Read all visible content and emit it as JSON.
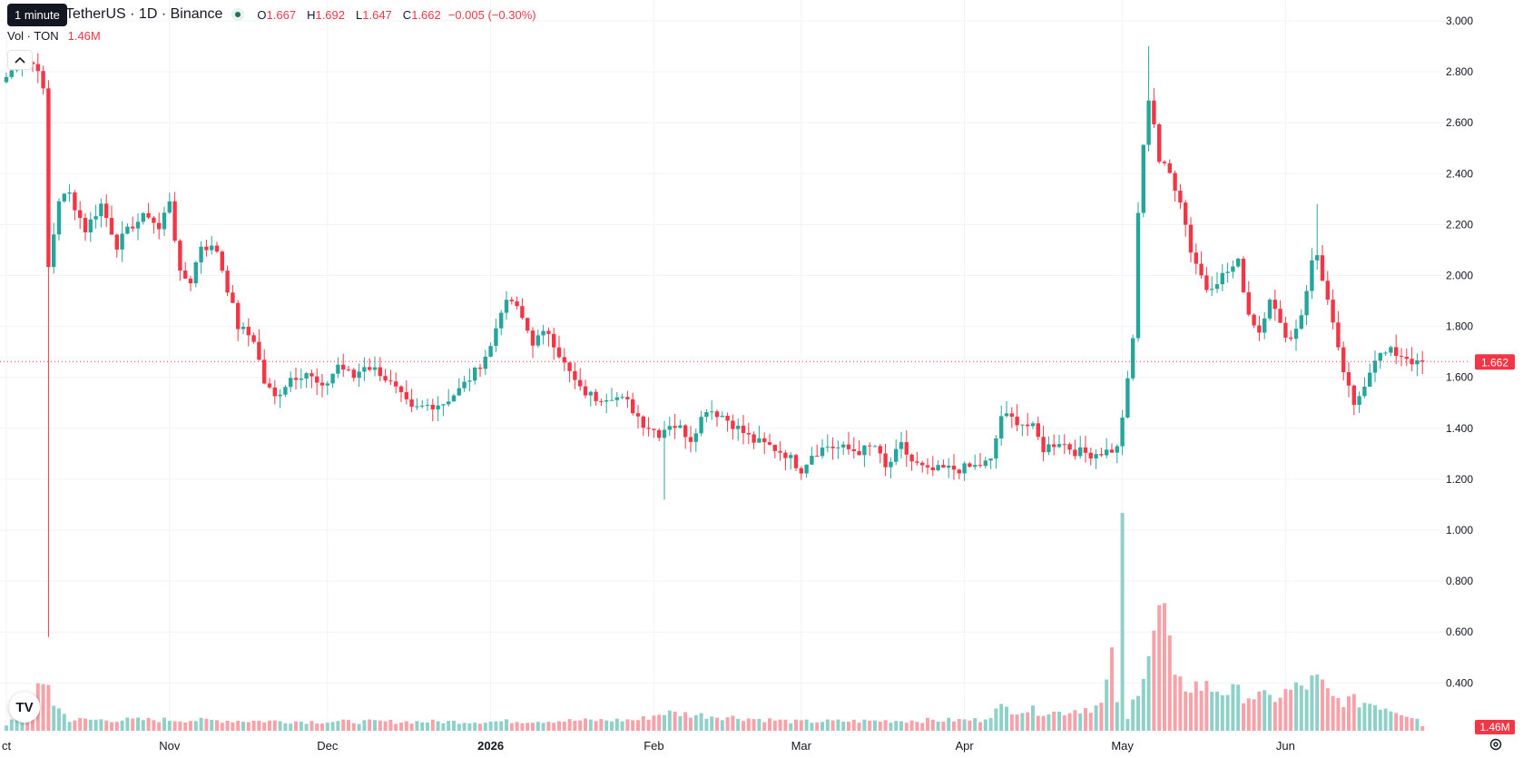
{
  "tooltip": "1 minute",
  "legend": {
    "symbol": "TetherUS · 1D · Binance",
    "o_label": "O",
    "o_value": "1.667",
    "h_label": "H",
    "h_value": "1.692",
    "l_label": "L",
    "l_value": "1.647",
    "c_label": "C",
    "c_value": "1.662",
    "change": "−0.005 (−0.30%)",
    "vol_label": "Vol · TON",
    "vol_value": "1.46M"
  },
  "collapse_icon": "chevron-up-icon",
  "settings_icon": "gear-icon",
  "logo": "TV",
  "colors": {
    "up": "#26a69a",
    "down": "#f23645",
    "vol_up": "#8fd0c8",
    "vol_down": "#f7a1a8",
    "grid": "#f0f3fa",
    "price_line": "#f23645"
  },
  "chart_data": {
    "type": "candlestick",
    "ylim": [
      0.34,
      3.1
    ],
    "y_ticks": [
      "3.000",
      "2.800",
      "2.600",
      "2.400",
      "2.200",
      "2.000",
      "1.800",
      "1.600",
      "1.400",
      "1.200",
      "1.000",
      "0.800",
      "0.600",
      "0.400"
    ],
    "x_ticks": [
      {
        "label": "ct",
        "index": 0
      },
      {
        "label": "Nov",
        "index": 31
      },
      {
        "label": "Dec",
        "index": 61
      },
      {
        "label": "2026",
        "index": 92,
        "bold": true
      },
      {
        "label": "Feb",
        "index": 123
      },
      {
        "label": "Mar",
        "index": 151
      },
      {
        "label": "Apr",
        "index": 182
      },
      {
        "label": "May",
        "index": 212
      },
      {
        "label": "Jun",
        "index": 243
      }
    ],
    "last_price": "1.662",
    "last_volume": "1.46M",
    "keypoints": [
      [
        0,
        2.78
      ],
      [
        3,
        2.85
      ],
      [
        6,
        2.82
      ],
      [
        7,
        2.72
      ],
      [
        8,
        2.03
      ],
      [
        10,
        2.3
      ],
      [
        12,
        2.32
      ],
      [
        15,
        2.18
      ],
      [
        18,
        2.28
      ],
      [
        21,
        2.12
      ],
      [
        24,
        2.2
      ],
      [
        27,
        2.24
      ],
      [
        29,
        2.18
      ],
      [
        31,
        2.3
      ],
      [
        33,
        2.0
      ],
      [
        35,
        1.98
      ],
      [
        37,
        2.12
      ],
      [
        40,
        2.1
      ],
      [
        42,
        1.95
      ],
      [
        44,
        1.8
      ],
      [
        47,
        1.75
      ],
      [
        49,
        1.58
      ],
      [
        51,
        1.52
      ],
      [
        54,
        1.6
      ],
      [
        57,
        1.62
      ],
      [
        60,
        1.55
      ],
      [
        63,
        1.65
      ],
      [
        66,
        1.6
      ],
      [
        68,
        1.65
      ],
      [
        71,
        1.62
      ],
      [
        74,
        1.55
      ],
      [
        77,
        1.47
      ],
      [
        80,
        1.49
      ],
      [
        83,
        1.5
      ],
      [
        86,
        1.55
      ],
      [
        89,
        1.62
      ],
      [
        92,
        1.72
      ],
      [
        94,
        1.87
      ],
      [
        96,
        1.9
      ],
      [
        98,
        1.83
      ],
      [
        100,
        1.74
      ],
      [
        103,
        1.78
      ],
      [
        106,
        1.65
      ],
      [
        109,
        1.55
      ],
      [
        112,
        1.52
      ],
      [
        115,
        1.53
      ],
      [
        118,
        1.5
      ],
      [
        121,
        1.42
      ],
      [
        124,
        1.38
      ],
      [
        126,
        1.42
      ],
      [
        128,
        1.4
      ],
      [
        130,
        1.36
      ],
      [
        133,
        1.48
      ],
      [
        136,
        1.45
      ],
      [
        139,
        1.4
      ],
      [
        142,
        1.35
      ],
      [
        145,
        1.33
      ],
      [
        148,
        1.3
      ],
      [
        151,
        1.24
      ],
      [
        153,
        1.3
      ],
      [
        156,
        1.33
      ],
      [
        159,
        1.32
      ],
      [
        162,
        1.31
      ],
      [
        165,
        1.33
      ],
      [
        167,
        1.24
      ],
      [
        170,
        1.33
      ],
      [
        172,
        1.27
      ],
      [
        175,
        1.23
      ],
      [
        178,
        1.24
      ],
      [
        181,
        1.24
      ],
      [
        184,
        1.25
      ],
      [
        187,
        1.27
      ],
      [
        189,
        1.45
      ],
      [
        192,
        1.43
      ],
      [
        195,
        1.4
      ],
      [
        197,
        1.32
      ],
      [
        200,
        1.35
      ],
      [
        203,
        1.31
      ],
      [
        206,
        1.3
      ],
      [
        209,
        1.31
      ],
      [
        211,
        1.32
      ],
      [
        213,
        1.58
      ],
      [
        214,
        1.75
      ],
      [
        215,
        2.25
      ],
      [
        216,
        2.5
      ],
      [
        217,
        2.7
      ],
      [
        218,
        2.6
      ],
      [
        219,
        2.45
      ],
      [
        221,
        2.4
      ],
      [
        223,
        2.3
      ],
      [
        225,
        2.1
      ],
      [
        228,
        1.95
      ],
      [
        231,
        2.0
      ],
      [
        234,
        2.05
      ],
      [
        236,
        1.85
      ],
      [
        238,
        1.78
      ],
      [
        240,
        1.92
      ],
      [
        242,
        1.8
      ],
      [
        244,
        1.75
      ],
      [
        246,
        1.85
      ],
      [
        248,
        2.05
      ],
      [
        249,
        2.08
      ],
      [
        251,
        1.9
      ],
      [
        253,
        1.7
      ],
      [
        255,
        1.55
      ],
      [
        256,
        1.48
      ],
      [
        258,
        1.58
      ],
      [
        260,
        1.68
      ],
      [
        263,
        1.7
      ],
      [
        266,
        1.68
      ],
      [
        268,
        1.65
      ],
      [
        269,
        1.66
      ]
    ],
    "volume_keypoints": [
      [
        0,
        0.05
      ],
      [
        8,
        0.55
      ],
      [
        9,
        0.3
      ],
      [
        12,
        0.12
      ],
      [
        30,
        0.12
      ],
      [
        60,
        0.1
      ],
      [
        90,
        0.1
      ],
      [
        120,
        0.12
      ],
      [
        125,
        0.2
      ],
      [
        150,
        0.1
      ],
      [
        185,
        0.12
      ],
      [
        189,
        0.25
      ],
      [
        200,
        0.2
      ],
      [
        208,
        0.28
      ],
      [
        210,
        0.75
      ],
      [
        211,
        0.35
      ],
      [
        212,
        2.4
      ],
      [
        213,
        0.12
      ],
      [
        216,
        0.7
      ],
      [
        218,
        1.1
      ],
      [
        220,
        1.35
      ],
      [
        222,
        0.5
      ],
      [
        226,
        0.5
      ],
      [
        240,
        0.35
      ],
      [
        249,
        0.55
      ],
      [
        252,
        0.35
      ],
      [
        260,
        0.3
      ],
      [
        268,
        0.15
      ],
      [
        269,
        0.05
      ]
    ],
    "volume_max": 2.4
  }
}
